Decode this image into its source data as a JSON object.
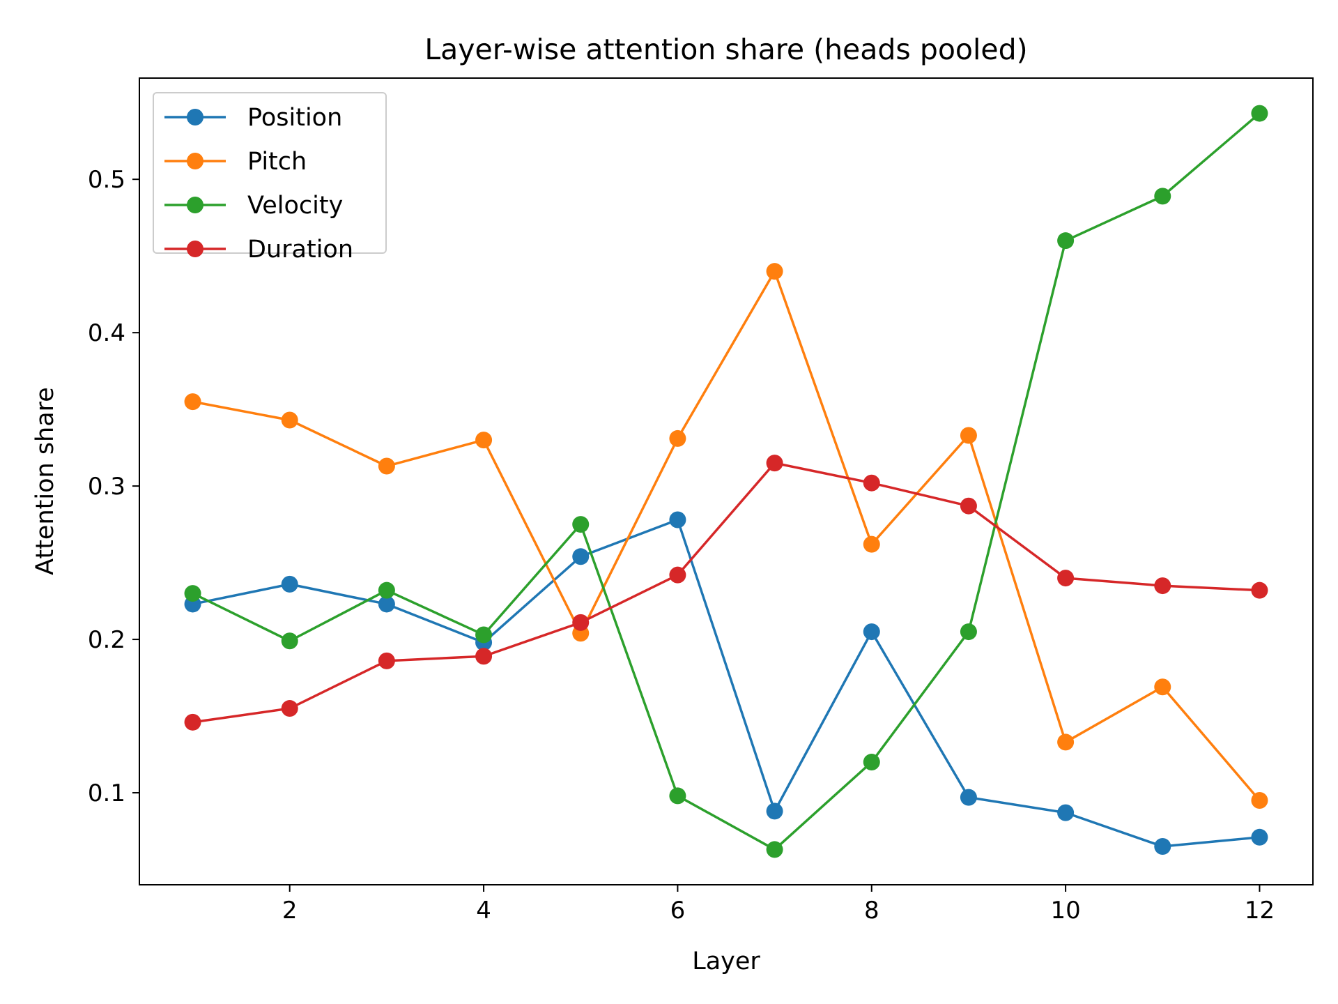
{
  "chart_data": {
    "type": "line",
    "title": "Layer-wise attention share (heads pooled)",
    "xlabel": "Layer",
    "ylabel": "Attention share",
    "x": [
      1,
      2,
      3,
      4,
      5,
      6,
      7,
      8,
      9,
      10,
      11,
      12
    ],
    "xlim": [
      0.45,
      12.55
    ],
    "ylim": [
      0.04,
      0.566
    ],
    "xticks": [
      2,
      4,
      6,
      8,
      10,
      12
    ],
    "xtick_labels": [
      "2",
      "4",
      "6",
      "8",
      "10",
      "12"
    ],
    "yticks": [
      0.1,
      0.2,
      0.3,
      0.4,
      0.5
    ],
    "ytick_labels": [
      "0.1",
      "0.2",
      "0.3",
      "0.4",
      "0.5"
    ],
    "grid": false,
    "legend_position": "top-left",
    "series": [
      {
        "name": "Position",
        "color": "#1f77b4",
        "values": [
          0.223,
          0.236,
          0.223,
          0.198,
          0.254,
          0.278,
          0.088,
          0.205,
          0.097,
          0.087,
          0.065,
          0.071
        ]
      },
      {
        "name": "Pitch",
        "color": "#ff7f0e",
        "values": [
          0.355,
          0.343,
          0.313,
          0.33,
          0.204,
          0.331,
          0.44,
          0.262,
          0.333,
          0.133,
          0.169,
          0.095
        ]
      },
      {
        "name": "Velocity",
        "color": "#2ca02c",
        "values": [
          0.23,
          0.199,
          0.232,
          0.203,
          0.275,
          0.098,
          0.063,
          0.12,
          0.205,
          0.46,
          0.489,
          0.543
        ]
      },
      {
        "name": "Duration",
        "color": "#d62728",
        "values": [
          0.146,
          0.155,
          0.186,
          0.189,
          0.211,
          0.242,
          0.315,
          0.302,
          0.287,
          0.24,
          0.235,
          0.232
        ]
      }
    ]
  }
}
